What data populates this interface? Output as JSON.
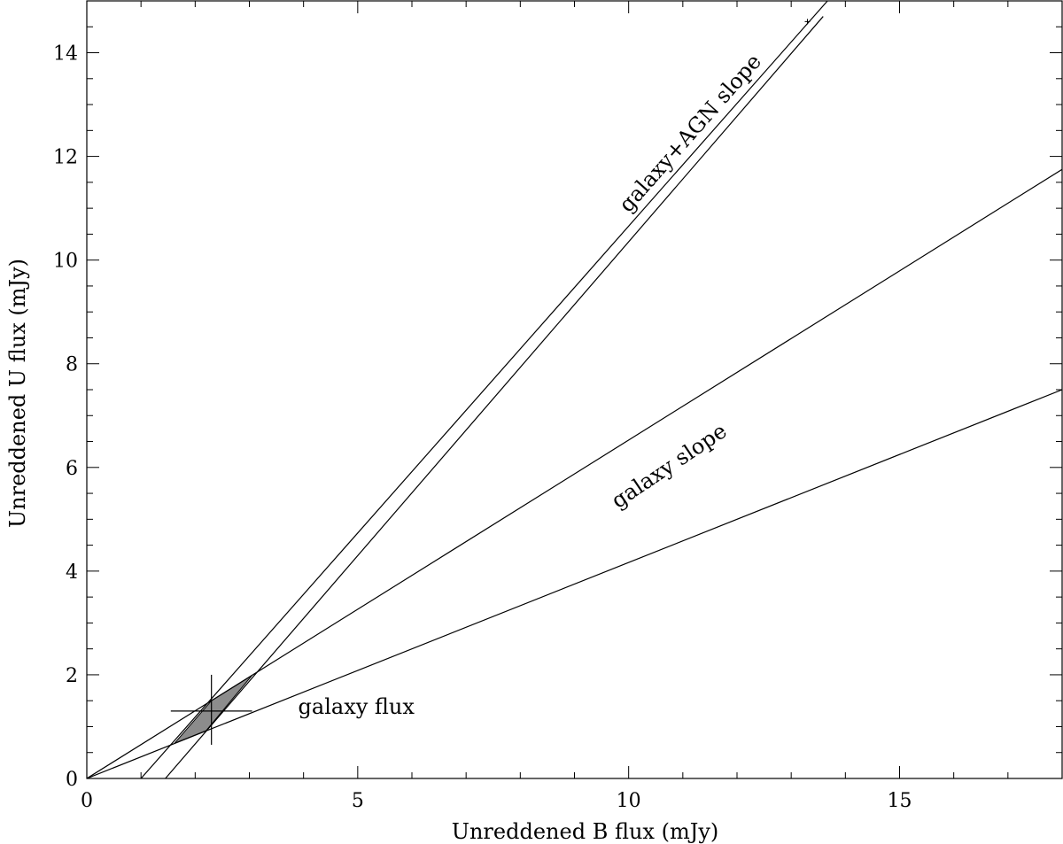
{
  "chart_data": {
    "type": "line",
    "xlabel": "Unreddened B flux (mJy)",
    "ylabel": "Unreddened U flux (mJy)",
    "xlim": [
      0,
      18
    ],
    "ylim": [
      0,
      15
    ],
    "x_ticks_major": [
      0,
      5,
      10,
      15
    ],
    "y_ticks_major": [
      0,
      2,
      4,
      6,
      8,
      10,
      12,
      14
    ],
    "x_ticks_minor_step": 1,
    "y_ticks_minor_step": 0.5,
    "grid": false,
    "legend": "none",
    "series": [
      {
        "points": [
          [
            1.0,
            0.0
          ],
          [
            13.67,
            15.0
          ]
        ]
      },
      {
        "points": [
          [
            1.45,
            0.0
          ],
          [
            13.59,
            14.7
          ]
        ]
      },
      {
        "points": [
          [
            0.0,
            0.0
          ],
          [
            18.0,
            11.75
          ]
        ]
      },
      {
        "points": [
          [
            0.0,
            0.0
          ],
          [
            18.0,
            7.5
          ]
        ]
      }
    ],
    "shaded_region": {
      "polygon": [
        [
          1.62,
          0.68
        ],
        [
          2.2,
          0.92
        ],
        [
          3.05,
          1.99
        ],
        [
          2.3,
          1.5
        ]
      ],
      "color": "#8c8c8c"
    },
    "data_point": {
      "x": 2.3,
      "y": 1.3,
      "x_err": 0.75,
      "y_err_low": 0.65,
      "y_err_high": 0.7
    },
    "endpoint_marker": {
      "x": 13.3,
      "y": 14.6
    },
    "annotations": [
      {
        "text": "galaxy+AGN slope",
        "x": 10.0,
        "y": 10.9
      },
      {
        "text": "galaxy slope",
        "x": 9.8,
        "y": 5.2
      },
      {
        "text": "galaxy flux",
        "x": 3.9,
        "y": 1.25
      }
    ]
  }
}
